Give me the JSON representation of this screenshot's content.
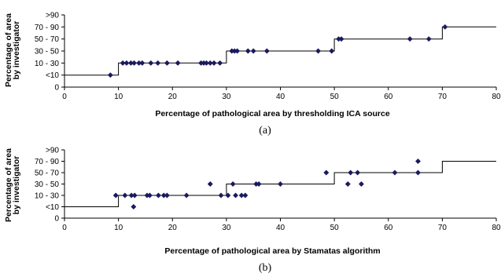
{
  "chart_data": [
    {
      "type": "scatter",
      "caption": "(a)",
      "xlabel": "Percentage of pathological area by thresholding ICA source",
      "ylabel": [
        "Percentage of area",
        "by investigator"
      ],
      "xlim": [
        0,
        80
      ],
      "x_ticks": [
        "0",
        "10",
        "20",
        "30",
        "40",
        "50",
        "60",
        "70",
        "80"
      ],
      "y_ticks": [
        "0",
        "<10",
        "10 - 30",
        "30 - 50",
        "50 - 70",
        "70 - 90",
        ">90"
      ],
      "grid": false,
      "step_line": [
        [
          0,
          1
        ],
        [
          10,
          1
        ],
        [
          10,
          2
        ],
        [
          30,
          2
        ],
        [
          30,
          3
        ],
        [
          50,
          3
        ],
        [
          50,
          4
        ],
        [
          70,
          4
        ],
        [
          70,
          5
        ],
        [
          80,
          5
        ]
      ],
      "points": [
        [
          8.5,
          1
        ],
        [
          10.8,
          2
        ],
        [
          11.5,
          2
        ],
        [
          12.3,
          2
        ],
        [
          12.9,
          2
        ],
        [
          13.8,
          2
        ],
        [
          14.4,
          2
        ],
        [
          16,
          2
        ],
        [
          17.3,
          2
        ],
        [
          19,
          2
        ],
        [
          21,
          2
        ],
        [
          25.3,
          2
        ],
        [
          25.8,
          2
        ],
        [
          26.3,
          2
        ],
        [
          27,
          2
        ],
        [
          27.7,
          2
        ],
        [
          28.8,
          2
        ],
        [
          31,
          3
        ],
        [
          31.5,
          3
        ],
        [
          32,
          3
        ],
        [
          34,
          3
        ],
        [
          35,
          3
        ],
        [
          37.5,
          3
        ],
        [
          47,
          3
        ],
        [
          49.5,
          3
        ],
        [
          50.8,
          4
        ],
        [
          51.3,
          4
        ],
        [
          64,
          4
        ],
        [
          67.5,
          4
        ],
        [
          70.5,
          5
        ]
      ]
    },
    {
      "type": "scatter",
      "caption": "(b)",
      "xlabel": "Percentage of pathological area by Stamatas algorithm",
      "ylabel": [
        "Percentage of area",
        "by investigator"
      ],
      "xlim": [
        0,
        80
      ],
      "x_ticks": [
        "0",
        "10",
        "20",
        "30",
        "40",
        "50",
        "60",
        "70",
        "80"
      ],
      "y_ticks": [
        "0",
        "<10",
        "10 - 30",
        "30 - 50",
        "50 - 70",
        "70 - 90",
        ">90"
      ],
      "grid": false,
      "step_line": [
        [
          0,
          1
        ],
        [
          10,
          1
        ],
        [
          10,
          2
        ],
        [
          30,
          2
        ],
        [
          30,
          3
        ],
        [
          50,
          3
        ],
        [
          50,
          4
        ],
        [
          70,
          4
        ],
        [
          70,
          5
        ],
        [
          80,
          5
        ]
      ],
      "points": [
        [
          9.5,
          2
        ],
        [
          11.2,
          2
        ],
        [
          12.4,
          2
        ],
        [
          13,
          2
        ],
        [
          15.3,
          2
        ],
        [
          15.8,
          2
        ],
        [
          17.4,
          2
        ],
        [
          18.4,
          2
        ],
        [
          19,
          2
        ],
        [
          22.6,
          2
        ],
        [
          12.8,
          1
        ],
        [
          27,
          3
        ],
        [
          29,
          2
        ],
        [
          30.3,
          2
        ],
        [
          31.2,
          3
        ],
        [
          31.7,
          2
        ],
        [
          32.8,
          2
        ],
        [
          33.5,
          2
        ],
        [
          35.5,
          3
        ],
        [
          36,
          3
        ],
        [
          40,
          3
        ],
        [
          48.5,
          4
        ],
        [
          52.5,
          3
        ],
        [
          53,
          4
        ],
        [
          54.3,
          4
        ],
        [
          55,
          3
        ],
        [
          61.2,
          4
        ],
        [
          65.5,
          4
        ],
        [
          65.5,
          5
        ]
      ]
    }
  ]
}
